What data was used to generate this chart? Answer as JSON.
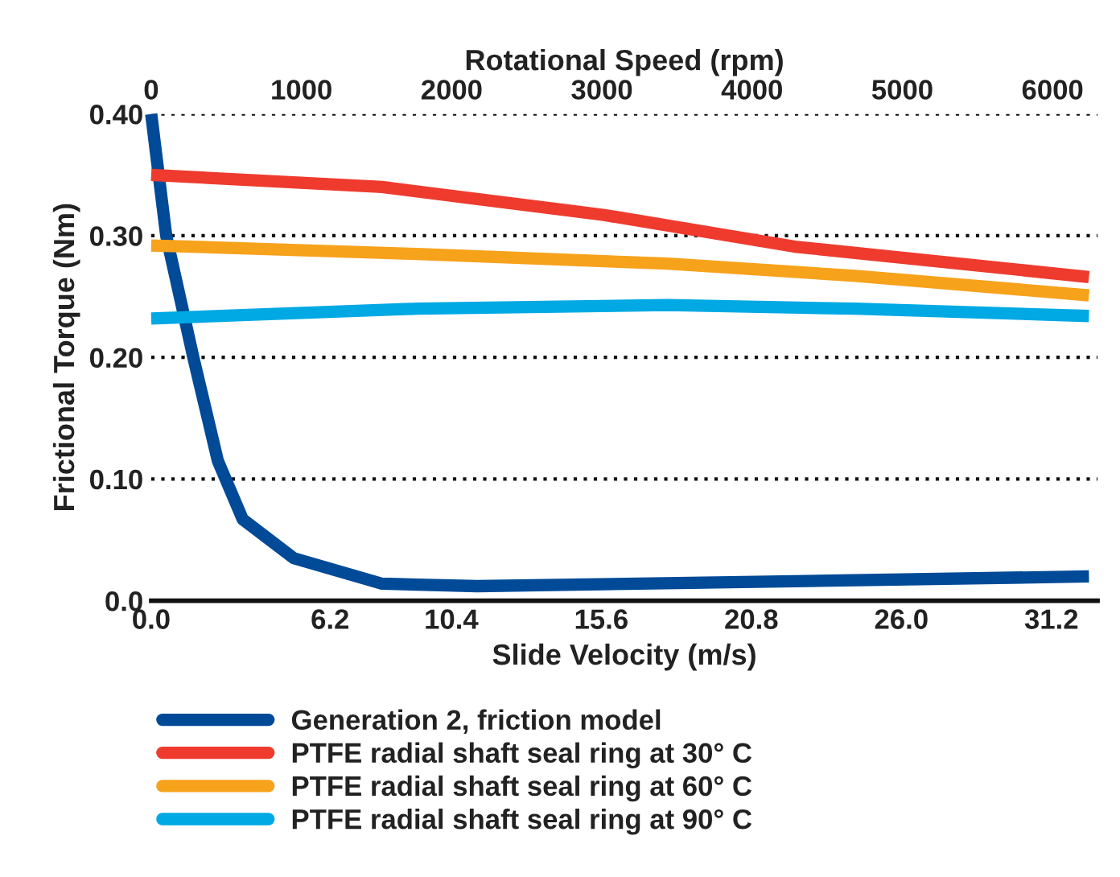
{
  "chart_data": {
    "type": "line",
    "xlabel": "Slide Velocity (m/s)",
    "x2label": "Rotational Speed (rpm)",
    "ylabel": "Frictional Torque (Nm)",
    "xlim": [
      0,
      32.8
    ],
    "x2lim": [
      0,
      6300
    ],
    "xticks": [
      {
        "value": 0,
        "label": "0.0"
      },
      6.2,
      10.4,
      15.6,
      20.8,
      {
        "value": 26,
        "label": "26.0"
      },
      31.2
    ],
    "x2ticks": [
      0,
      1000,
      2000,
      3000,
      4000,
      5000,
      6000
    ],
    "ylim": [
      0,
      0.4
    ],
    "yticks": [
      {
        "value": 0,
        "label": "0.0"
      },
      {
        "value": 0.1,
        "label": "0.10"
      },
      {
        "value": 0.2,
        "label": "0.20"
      },
      {
        "value": 0.3,
        "label": "0.30"
      },
      {
        "value": 0.4,
        "label": "0.40"
      }
    ],
    "grid": "y",
    "legend": "bottom",
    "marker": "none",
    "line_style": "solid",
    "series": [
      {
        "name": "Generation 2, friction model",
        "color": "#004a97",
        "x": [
          0,
          0.52,
          1.46,
          2.31,
          3.17,
          4.94,
          8.0,
          11.3,
          22.3,
          32.5
        ],
        "values": [
          0.4,
          0.3,
          0.2,
          0.115,
          0.067,
          0.035,
          0.014,
          0.012,
          0.016,
          0.02
        ]
      },
      {
        "name": "PTFE radial shaft seal ring at 30° C",
        "color": "#ee3b2e",
        "x": [
          0,
          8.0,
          15.7,
          22.3,
          32.5
        ],
        "values": [
          0.35,
          0.34,
          0.317,
          0.291,
          0.266
        ]
      },
      {
        "name": "PTFE radial shaft seal ring at 60° C",
        "color": "#f7a21b",
        "x": [
          0,
          9.2,
          17.9,
          24.4,
          32.5
        ],
        "values": [
          0.292,
          0.285,
          0.277,
          0.267,
          0.251
        ]
      },
      {
        "name": "PTFE radial shaft seal ring at 90° C",
        "color": "#00a9e3",
        "x": [
          0,
          9.2,
          17.9,
          24.4,
          32.5
        ],
        "values": [
          0.232,
          0.24,
          0.243,
          0.24,
          0.234
        ]
      }
    ]
  }
}
